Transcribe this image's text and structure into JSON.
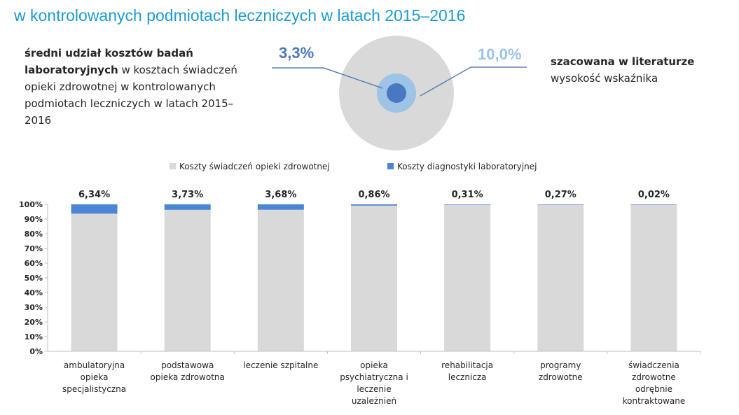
{
  "header": {
    "title_line2": "w kontrolowanych podmiotach leczniczych w latach 2015–2016"
  },
  "summary": {
    "description_bold": "średni udział kosztów badań laboratoryjnych",
    "description_rest": "w kosztach świadczeń opieki zdrowotnej  w kontrolowanych podmiotach leczniczych w latach 2015–2016",
    "value_controlled": "3,3%",
    "value_literature": "10,0%",
    "literature_bold": "szacowana w literaturze",
    "literature_rest": "wysokość wskaźnika"
  },
  "colors": {
    "title": "#1c9ad6",
    "healthcare_costs": "#d9d9d9",
    "lab_costs": "#4a86d4",
    "circle_outer": "#d9d9d9",
    "circle_middle": "#9dc3e6",
    "circle_inner": "#4a78c0"
  },
  "chart_data": {
    "type": "bar",
    "stacked": true,
    "categories": [
      [
        "ambulatoryjna",
        "opieka",
        "specjalistyczna"
      ],
      [
        "podstawowa",
        "opieka zdrowotna"
      ],
      [
        "leczenie szpitalne"
      ],
      [
        "opieka",
        "psychiatryczna i",
        "leczenie",
        "uzależnień"
      ],
      [
        "rehabilitacja",
        "lecznicza"
      ],
      [
        "programy",
        "zdrowotne"
      ],
      [
        "świadczenia",
        "zdrowotne",
        "odrębnie",
        "kontraktowane"
      ]
    ],
    "series": [
      {
        "name": "Koszty świadczeń opieki zdrowotnej",
        "values": [
          93.66,
          96.27,
          96.32,
          99.14,
          99.69,
          99.73,
          99.98
        ]
      },
      {
        "name": "Koszty diagnostyki laboratoryjnej",
        "values": [
          6.34,
          3.73,
          3.68,
          0.86,
          0.31,
          0.27,
          0.02
        ]
      }
    ],
    "data_labels": [
      "6,34%",
      "3,73%",
      "3,68%",
      "0,86%",
      "0,31%",
      "0,27%",
      "0,02%"
    ],
    "yticks": [
      "0%",
      "10%",
      "20%",
      "30%",
      "40%",
      "50%",
      "60%",
      "70%",
      "80%",
      "90%",
      "100%"
    ],
    "ylim": [
      0,
      100
    ],
    "legend_position": "top",
    "grid": false
  }
}
